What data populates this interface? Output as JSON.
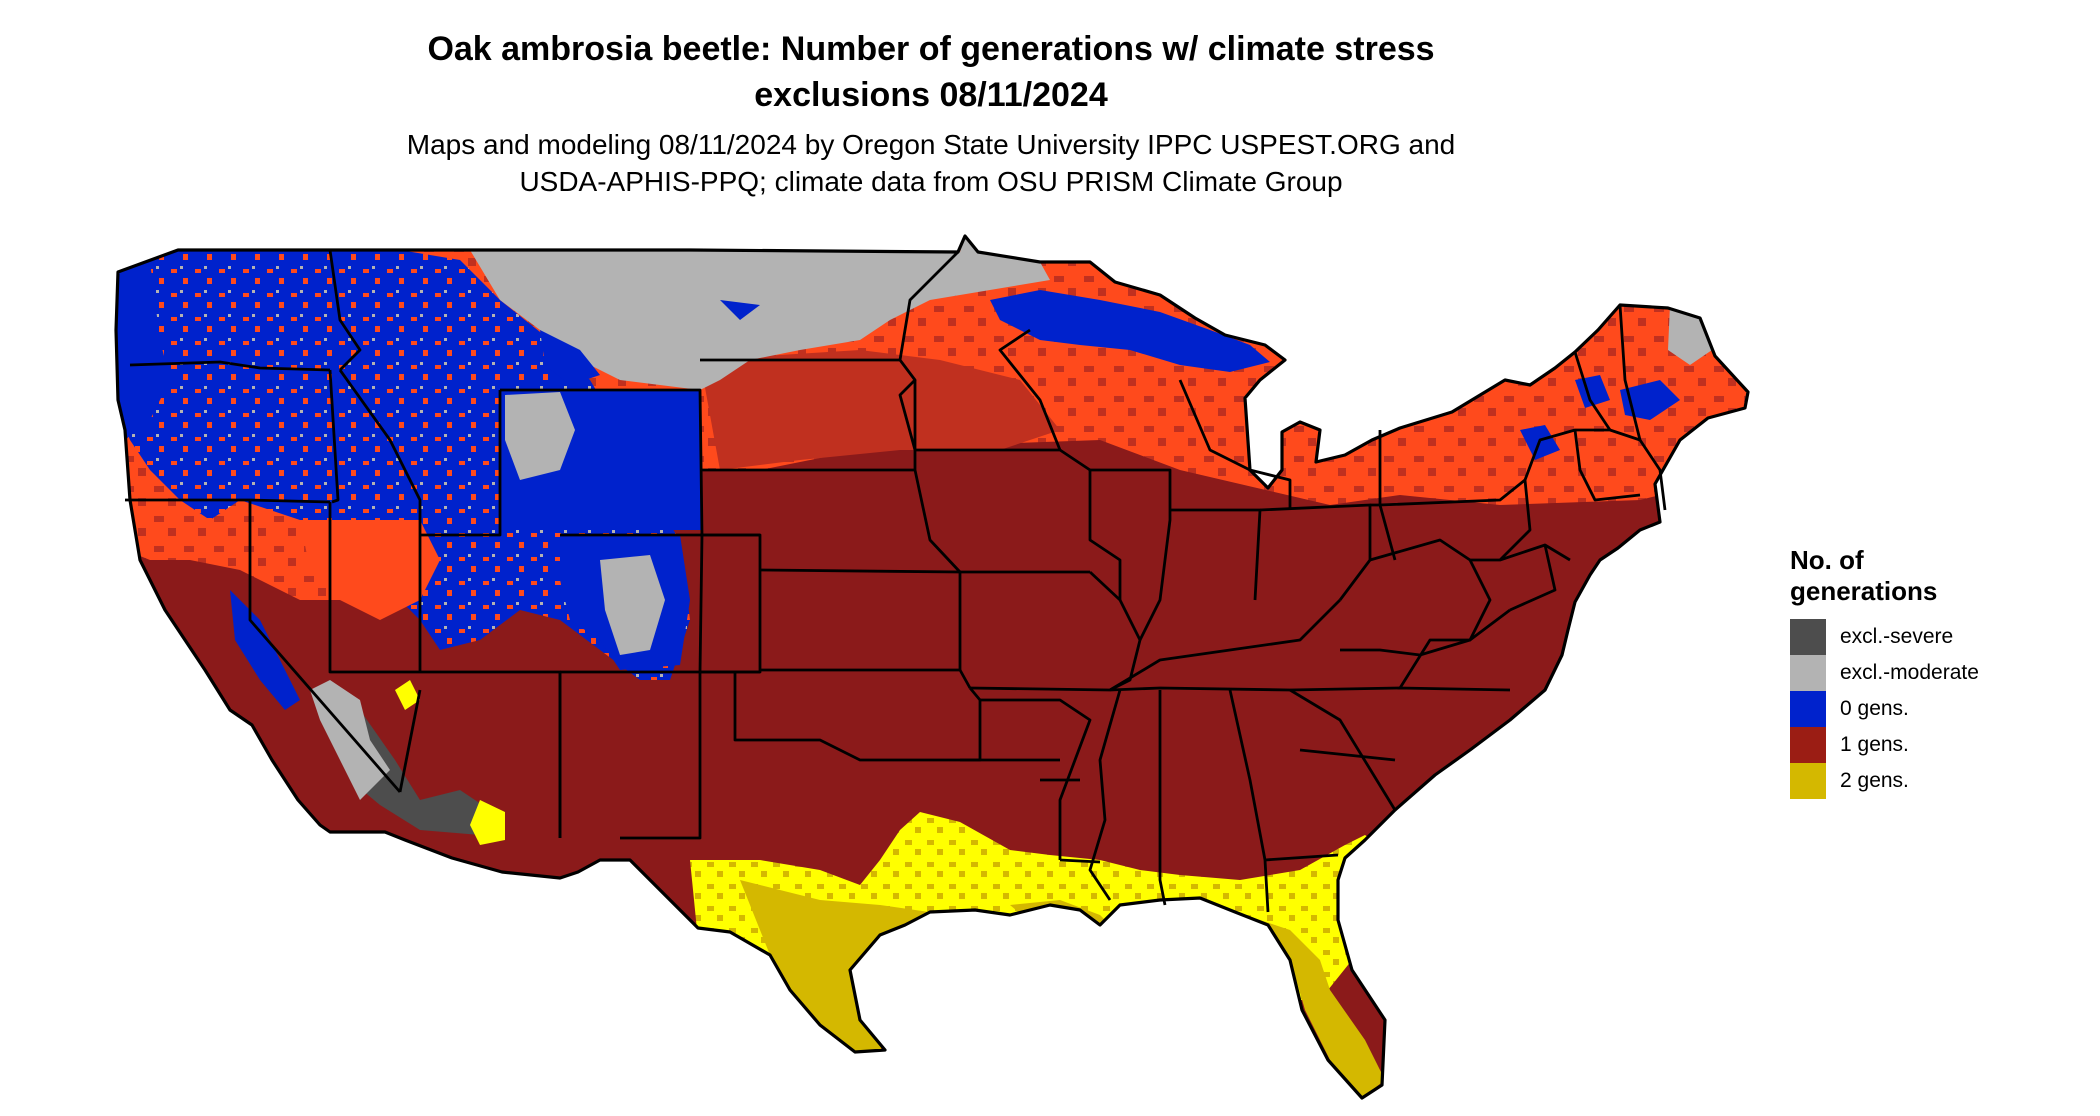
{
  "title": {
    "line1": "Oak ambrosia beetle: Number of generations w/ climate stress",
    "line2": "exclusions 08/11/2024"
  },
  "subtitle": {
    "line1": "Maps and modeling 08/11/2024 by Oregon State University IPPC USPEST.ORG and",
    "line2": "USDA-APHIS-PPQ; climate data from OSU PRISM Climate Group"
  },
  "legend": {
    "title_line1": "No. of",
    "title_line2": "generations",
    "items": [
      {
        "label": "excl.-severe",
        "color": "#4d4d4d"
      },
      {
        "label": "excl.-moderate",
        "color": "#b3b3b3"
      },
      {
        "label": "0 gens.",
        "color": "#0022cc"
      },
      {
        "label": "1 gens.",
        "color": "#8b1a1a"
      },
      {
        "label": "2 gens.",
        "color": "#d4b800"
      }
    ]
  },
  "colors": {
    "severe": "#4d4d4d",
    "moderate": "#b3b3b3",
    "zero": "#0022cc",
    "one": "#8b1a1a",
    "one_light": "#ff4a1c",
    "one_mid": "#c0301f",
    "two": "#d4b800",
    "two_light": "#ffff00",
    "border": "#000000"
  }
}
